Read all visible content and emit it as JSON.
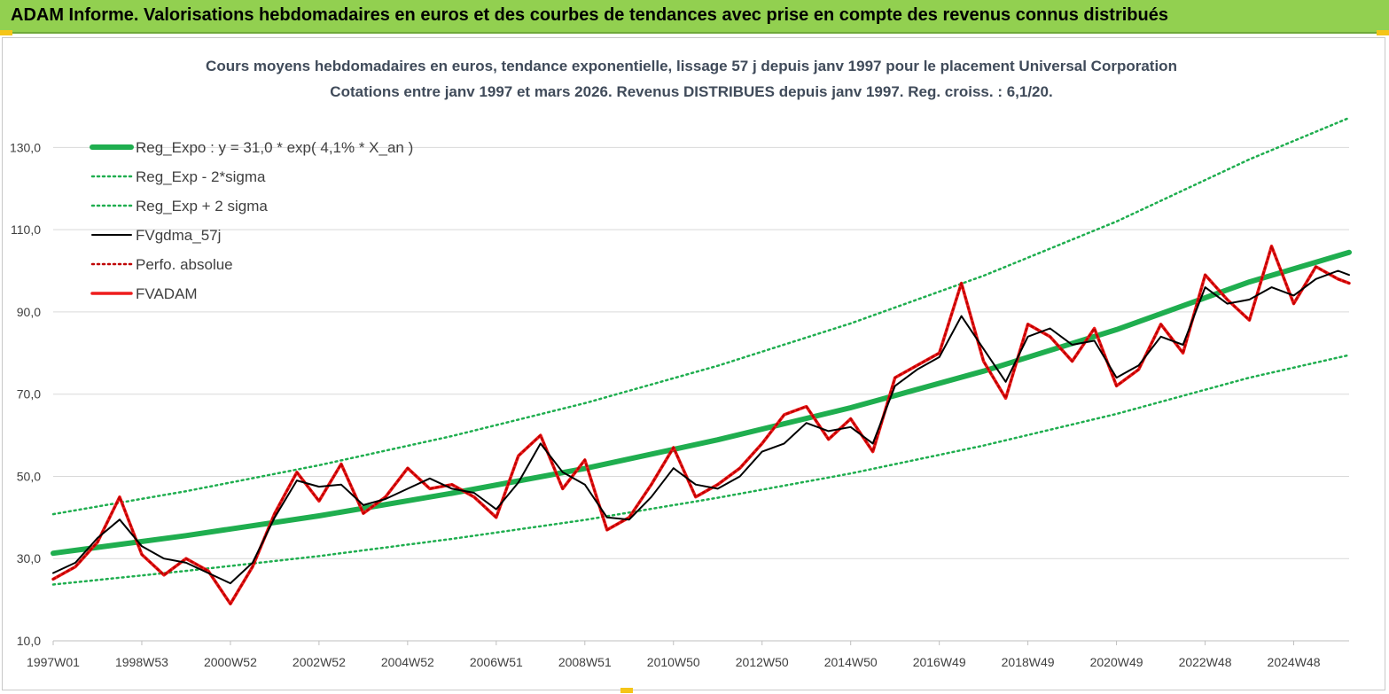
{
  "banner": {
    "title": "ADAM Informe. Valorisations hebdomadaires en euros et des courbes de tendances avec prise en compte des revenus connus distribués"
  },
  "colors": {
    "banner": "#92d050",
    "trend": "#1fae4f",
    "band": "#1fae4f",
    "smooth": "#000000",
    "price": "#ee1c1c",
    "grid": "#d9d9d9"
  },
  "chart_data": {
    "type": "line",
    "title": [
      "Cours moyens hebdomadaires en euros, tendance exponentielle, lissage 57 j depuis janv 1997 pour le placement Universal Corporation",
      "Cotations entre janv 1997 et mars 2026. Revenus DISTRIBUES depuis janv 1997. Reg. croiss. : 6,1/20."
    ],
    "xlabel": "",
    "ylabel": "",
    "ylim": [
      10,
      140
    ],
    "xlim": [
      1997.0,
      2026.25
    ],
    "yticks": [
      {
        "value": 10,
        "label": "10,0"
      },
      {
        "value": 30,
        "label": "30,0"
      },
      {
        "value": 50,
        "label": "50,0"
      },
      {
        "value": 70,
        "label": "70,0"
      },
      {
        "value": 90,
        "label": "90,0"
      },
      {
        "value": 110,
        "label": "110,0"
      },
      {
        "value": 130,
        "label": "130,0"
      }
    ],
    "xticks": [
      {
        "value": 1997.0,
        "label": "1997W01"
      },
      {
        "value": 1999.0,
        "label": "1998W53"
      },
      {
        "value": 2001.0,
        "label": "2000W52"
      },
      {
        "value": 2003.0,
        "label": "2002W52"
      },
      {
        "value": 2005.0,
        "label": "2004W52"
      },
      {
        "value": 2007.0,
        "label": "2006W51"
      },
      {
        "value": 2009.0,
        "label": "2008W51"
      },
      {
        "value": 2011.0,
        "label": "2010W50"
      },
      {
        "value": 2013.0,
        "label": "2012W50"
      },
      {
        "value": 2015.0,
        "label": "2014W50"
      },
      {
        "value": 2017.0,
        "label": "2016W49"
      },
      {
        "value": 2019.0,
        "label": "2018W49"
      },
      {
        "value": 2021.0,
        "label": "2020W49"
      },
      {
        "value": 2023.0,
        "label": "2022W48"
      },
      {
        "value": 2025.0,
        "label": "2024W48"
      }
    ],
    "grid": true,
    "legend_position": "top-left",
    "series": [
      {
        "name": "Reg_Expo : y = 31,0 * exp( 4,1% *  X_an )",
        "style": "thick-solid",
        "color": "#1fae4f",
        "x": [
          1997.0,
          2000.0,
          2003.0,
          2006.0,
          2009.0,
          2012.0,
          2015.0,
          2018.0,
          2021.0,
          2024.0,
          2026.25
        ],
        "values": [
          31.3,
          35.6,
          40.4,
          45.9,
          51.9,
          58.9,
          66.7,
          75.6,
          85.7,
          97.3,
          104.5
        ]
      },
      {
        "name": "Reg_Exp - 2*sigma",
        "style": "dotted",
        "color": "#1fae4f",
        "x": [
          1997.0,
          2000.0,
          2003.0,
          2006.0,
          2009.0,
          2012.0,
          2015.0,
          2018.0,
          2021.0,
          2024.0,
          2026.25
        ],
        "values": [
          23.7,
          27.0,
          30.6,
          34.8,
          39.4,
          44.8,
          50.7,
          57.5,
          65.2,
          74.0,
          79.5
        ]
      },
      {
        "name": "Reg_Exp + 2 sigma",
        "style": "dotted",
        "color": "#1fae4f",
        "x": [
          1997.0,
          2000.0,
          2003.0,
          2006.0,
          2009.0,
          2012.0,
          2015.0,
          2018.0,
          2021.0,
          2024.0,
          2026.25
        ],
        "values": [
          40.8,
          46.4,
          52.7,
          59.8,
          67.8,
          76.9,
          87.2,
          98.8,
          112.0,
          127.1,
          137.2
        ]
      },
      {
        "name": "FVgdma_57j",
        "style": "solid",
        "color": "#000000",
        "x": [
          1997.0,
          1997.5,
          1998.0,
          1998.5,
          1999.0,
          1999.5,
          2000.0,
          2000.5,
          2001.0,
          2001.5,
          2002.0,
          2002.5,
          2003.0,
          2003.5,
          2004.0,
          2004.5,
          2005.0,
          2005.5,
          2006.0,
          2006.5,
          2007.0,
          2007.5,
          2008.0,
          2008.5,
          2009.0,
          2009.5,
          2010.0,
          2010.5,
          2011.0,
          2011.5,
          2012.0,
          2012.5,
          2013.0,
          2013.5,
          2014.0,
          2014.5,
          2015.0,
          2015.5,
          2016.0,
          2016.5,
          2017.0,
          2017.5,
          2018.0,
          2018.5,
          2019.0,
          2019.5,
          2020.0,
          2020.5,
          2021.0,
          2021.5,
          2022.0,
          2022.5,
          2023.0,
          2023.5,
          2024.0,
          2024.5,
          2025.0,
          2025.5,
          2026.0,
          2026.25
        ],
        "values": [
          26.5,
          29.0,
          35.0,
          39.5,
          33.0,
          30.0,
          29.0,
          26.5,
          24.0,
          29.0,
          40.0,
          49.0,
          47.5,
          48.0,
          43.0,
          44.5,
          47.0,
          49.5,
          47.0,
          46.0,
          42.0,
          48.5,
          58.0,
          51.0,
          48.0,
          40.0,
          39.5,
          45.0,
          52.0,
          48.0,
          47.0,
          50.0,
          56.0,
          58.0,
          63.0,
          61.0,
          62.0,
          58.0,
          72.0,
          76.0,
          79.0,
          89.0,
          81.0,
          73.0,
          84.0,
          86.0,
          82.0,
          83.0,
          74.0,
          77.0,
          84.0,
          82.0,
          96.0,
          92.0,
          93.0,
          96.0,
          94.0,
          98.0,
          100.0,
          99.0
        ]
      },
      {
        "name": "Perfo. absolue",
        "style": "dotted",
        "color": "#c00000",
        "x": [
          1997.0,
          1997.5,
          1998.0,
          1998.5,
          1999.0,
          1999.5,
          2000.0,
          2000.5,
          2001.0,
          2001.5,
          2002.0,
          2002.5,
          2003.0,
          2003.5,
          2004.0,
          2004.5,
          2005.0,
          2005.5,
          2006.0,
          2006.5,
          2007.0,
          2007.5,
          2008.0,
          2008.5,
          2009.0,
          2009.5,
          2010.0,
          2010.5,
          2011.0,
          2011.5,
          2012.0,
          2012.5,
          2013.0,
          2013.5,
          2014.0,
          2014.5,
          2015.0,
          2015.5,
          2016.0,
          2016.5,
          2017.0,
          2017.5,
          2018.0,
          2018.5,
          2019.0,
          2019.5,
          2020.0,
          2020.5,
          2021.0,
          2021.5,
          2022.0,
          2022.5,
          2023.0,
          2023.5,
          2024.0,
          2024.5,
          2025.0,
          2025.5,
          2026.0,
          2026.25
        ],
        "values": [
          25.0,
          28.0,
          34.0,
          45.0,
          31.0,
          26.0,
          30.0,
          27.0,
          19.0,
          28.0,
          41.0,
          51.0,
          44.0,
          53.0,
          41.0,
          45.0,
          52.0,
          47.0,
          48.0,
          45.0,
          40.0,
          55.0,
          60.0,
          47.0,
          54.0,
          37.0,
          40.0,
          48.0,
          57.0,
          45.0,
          48.0,
          52.0,
          58.0,
          65.0,
          67.0,
          59.0,
          64.0,
          56.0,
          74.0,
          77.0,
          80.0,
          97.0,
          78.0,
          69.0,
          87.0,
          84.0,
          78.0,
          86.0,
          72.0,
          76.0,
          87.0,
          80.0,
          99.0,
          93.0,
          88.0,
          106.0,
          92.0,
          101.0,
          98.0,
          97.0
        ]
      },
      {
        "name": "FVADAM",
        "style": "thick-solid",
        "color": "#ee1c1c",
        "x": [
          1997.0,
          1997.5,
          1998.0,
          1998.5,
          1999.0,
          1999.5,
          2000.0,
          2000.5,
          2001.0,
          2001.5,
          2002.0,
          2002.5,
          2003.0,
          2003.5,
          2004.0,
          2004.5,
          2005.0,
          2005.5,
          2006.0,
          2006.5,
          2007.0,
          2007.5,
          2008.0,
          2008.5,
          2009.0,
          2009.5,
          2010.0,
          2010.5,
          2011.0,
          2011.5,
          2012.0,
          2012.5,
          2013.0,
          2013.5,
          2014.0,
          2014.5,
          2015.0,
          2015.5,
          2016.0,
          2016.5,
          2017.0,
          2017.5,
          2018.0,
          2018.5,
          2019.0,
          2019.5,
          2020.0,
          2020.5,
          2021.0,
          2021.5,
          2022.0,
          2022.5,
          2023.0,
          2023.5,
          2024.0,
          2024.5,
          2025.0,
          2025.5,
          2026.0,
          2026.25
        ],
        "values": [
          25.0,
          28.0,
          34.0,
          45.0,
          31.0,
          26.0,
          30.0,
          27.0,
          19.0,
          28.0,
          41.0,
          51.0,
          44.0,
          53.0,
          41.0,
          45.0,
          52.0,
          47.0,
          48.0,
          45.0,
          40.0,
          55.0,
          60.0,
          47.0,
          54.0,
          37.0,
          40.0,
          48.0,
          57.0,
          45.0,
          48.0,
          52.0,
          58.0,
          65.0,
          67.0,
          59.0,
          64.0,
          56.0,
          74.0,
          77.0,
          80.0,
          97.0,
          78.0,
          69.0,
          87.0,
          84.0,
          78.0,
          86.0,
          72.0,
          76.0,
          87.0,
          80.0,
          99.0,
          93.0,
          88.0,
          106.0,
          92.0,
          101.0,
          98.0,
          97.0
        ]
      }
    ]
  }
}
